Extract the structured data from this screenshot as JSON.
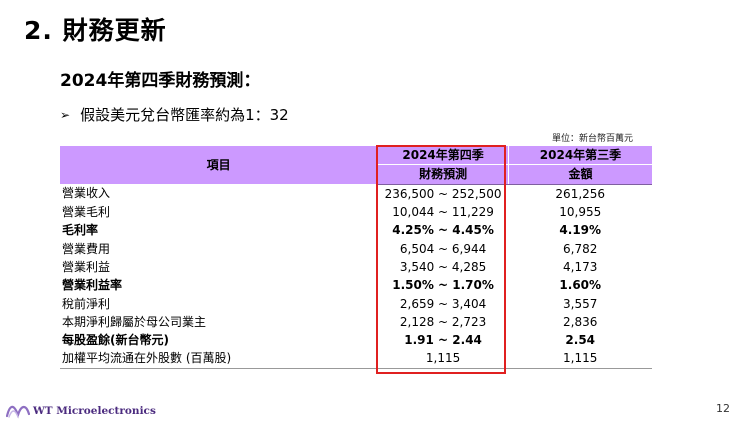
{
  "slide": {
    "title": "2. 財務更新",
    "subtitle": "2024年第四季財務預測：",
    "bullet": "假設美元兌台幣匯率約為1：32",
    "unit_note": "單位：新台幣百萬元",
    "page_number": "12"
  },
  "logo": {
    "text": "WT Microelectronics"
  },
  "table": {
    "header": {
      "item": "項目",
      "q4_line1": "2024年第四季",
      "q4_line2": "財務預測",
      "q3_line1": "2024年第三季",
      "q3_line2": "金額"
    },
    "rows": [
      {
        "label": "營業收入",
        "q4": "236,500 ~ 252,500",
        "q3": "261,256",
        "bold": false
      },
      {
        "label": "營業毛利",
        "q4": "10,044 ~ 11,229",
        "q3": "10,955",
        "bold": false
      },
      {
        "label": "毛利率",
        "q4": "4.25% ~ 4.45%",
        "q3": "4.19%",
        "bold": true
      },
      {
        "label": "營業費用",
        "q4": "6,504 ~ 6,944",
        "q3": "6,782",
        "bold": false
      },
      {
        "label": "營業利益",
        "q4": "3,540 ~ 4,285",
        "q3": "4,173",
        "bold": false
      },
      {
        "label": "營業利益率",
        "q4": "1.50% ~ 1.70%",
        "q3": "1.60%",
        "bold": true
      },
      {
        "label": "稅前淨利",
        "q4": "2,659 ~ 3,404",
        "q3": "3,557",
        "bold": false
      },
      {
        "label": "本期淨利歸屬於母公司業主",
        "q4": "2,128 ~ 2,723",
        "q3": "2,836",
        "bold": false
      },
      {
        "label": "每股盈餘(新台幣元)",
        "q4": "1.91 ~ 2.44",
        "q3": "2.54",
        "bold": true
      },
      {
        "label": "加權平均流通在外股數 (百萬股)",
        "q4": "1,115",
        "q3": "1,115",
        "bold": false
      }
    ]
  },
  "colors": {
    "header_bg": "#cc99ff",
    "highlight": "#e02020",
    "logo": "#4b2b7f"
  }
}
